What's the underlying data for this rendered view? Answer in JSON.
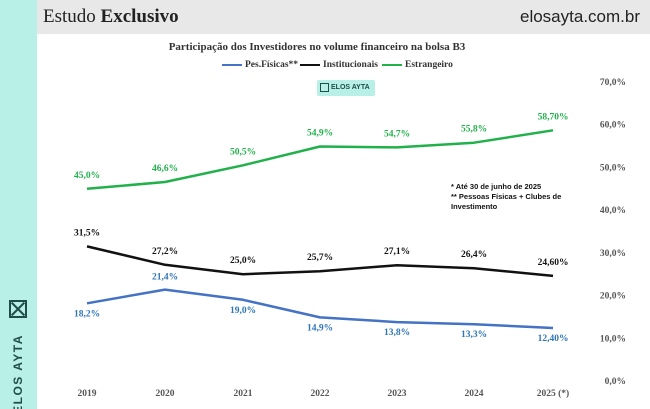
{
  "header": {
    "title_regular": "Estudo ",
    "title_bold": "Exclusivo",
    "site": "elosayta.com.br"
  },
  "brand": {
    "name": "ELOS AYTA"
  },
  "watermark": {
    "text": "ELOS AYTA"
  },
  "notes": {
    "line1": "* Até 30 de junho de 2025",
    "line2": "** Pessoas Físicas + Clubes de Investimento"
  },
  "colors": {
    "pf": "#4472c4",
    "inst": "#111111",
    "est": "#21b14b",
    "label_pf": "#2e75b6",
    "label_est": "#21b14b",
    "band": "#b8efe7"
  },
  "chart_data": {
    "type": "line",
    "title": "Participação dos Investidores no volume financeiro na bolsa B3",
    "categories": [
      "2019",
      "2020",
      "2021",
      "2022",
      "2023",
      "2024",
      "2025 (*)"
    ],
    "series": [
      {
        "name": "Pes.Físicas**",
        "values": [
          18.2,
          21.4,
          19.0,
          14.9,
          13.8,
          13.3,
          12.4
        ],
        "labels": [
          "18,2%",
          "21,4%",
          "19,0%",
          "14,9%",
          "13,8%",
          "13,3%",
          "12,40%"
        ]
      },
      {
        "name": "Institucionais",
        "values": [
          31.5,
          27.2,
          25.0,
          25.7,
          27.1,
          26.4,
          24.6
        ],
        "labels": [
          "31,5%",
          "27,2%",
          "25,0%",
          "25,7%",
          "27,1%",
          "26,4%",
          "24,60%"
        ]
      },
      {
        "name": "Estrangeiro",
        "values": [
          45.0,
          46.6,
          50.5,
          54.9,
          54.7,
          55.8,
          58.7
        ],
        "labels": [
          "45,0%",
          "46,6%",
          "50,5%",
          "54,9%",
          "54,7%",
          "55,8%",
          "58,70%"
        ]
      }
    ],
    "y_axis": {
      "min": 0,
      "max": 70,
      "step": 10,
      "tick_labels": [
        "0,0%",
        "10,0%",
        "20,0%",
        "30,0%",
        "40,0%",
        "50,0%",
        "60,0%",
        "70,0%"
      ]
    },
    "legend_position": "top-center",
    "grid": false
  }
}
